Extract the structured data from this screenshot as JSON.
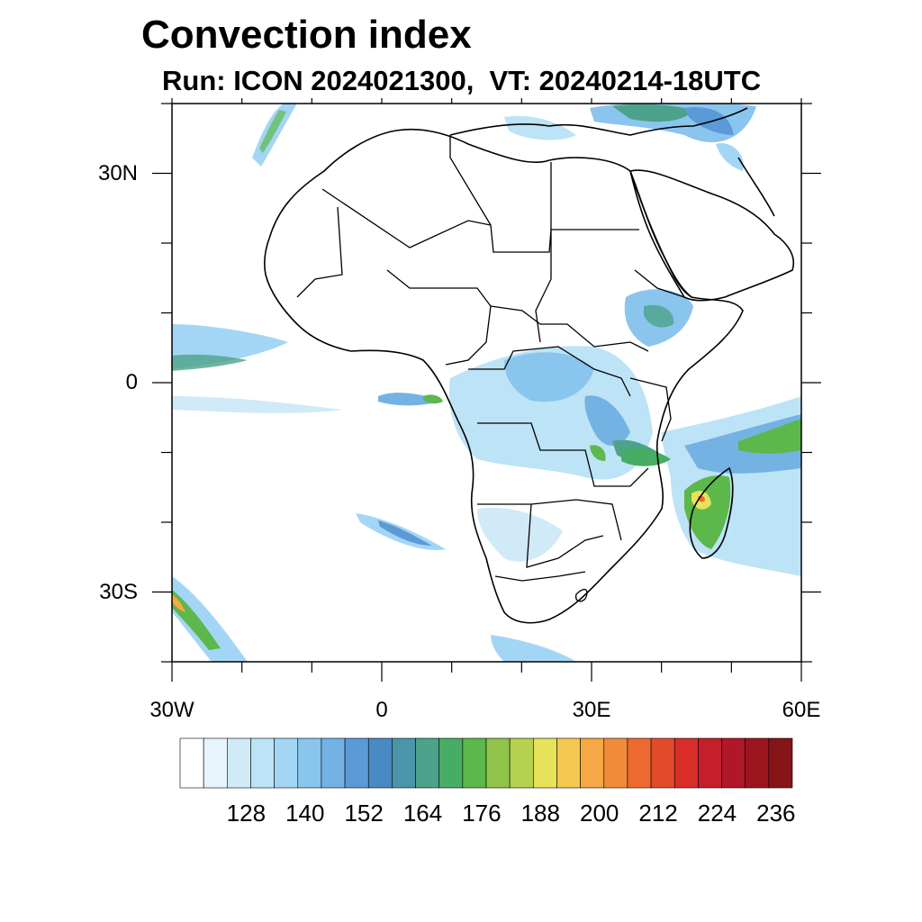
{
  "header": {
    "title": "Convection index",
    "subtitle": "Run: ICON 2024021300,  VT: 20240214-18UTC"
  },
  "map": {
    "projection": "lat-lon",
    "lon_range": [
      -30,
      60
    ],
    "lat_range": [
      -40,
      40
    ],
    "lat_labels": [
      {
        "lat": 30,
        "text": "30N"
      },
      {
        "lat": 0,
        "text": "0"
      },
      {
        "lat": -30,
        "text": "30S"
      }
    ],
    "lon_labels": [
      {
        "lon": -30,
        "text": "30W"
      },
      {
        "lon": 0,
        "text": "0"
      },
      {
        "lon": 30,
        "text": "30E"
      },
      {
        "lon": 60,
        "text": "60E"
      }
    ],
    "field": "convection index"
  },
  "colorbar": {
    "colors": [
      "#ffffff",
      "#e8f4fb",
      "#d0eaf8",
      "#bde3f6",
      "#a3d6f5",
      "#8ac5ee",
      "#74b2e4",
      "#5b9ad6",
      "#4a8ac3",
      "#4a96a8",
      "#4ca28a",
      "#48ad64",
      "#5cb84a",
      "#8fc34a",
      "#b6d150",
      "#e6e25a",
      "#f5c84f",
      "#f5a844",
      "#f18b3a",
      "#ec6a2f",
      "#e34a2a",
      "#d92d2a",
      "#c61f2c",
      "#b0182a",
      "#9c1620",
      "#861518"
    ],
    "labels": [
      "128",
      "140",
      "152",
      "164",
      "176",
      "188",
      "200",
      "212",
      "224",
      "236"
    ]
  }
}
